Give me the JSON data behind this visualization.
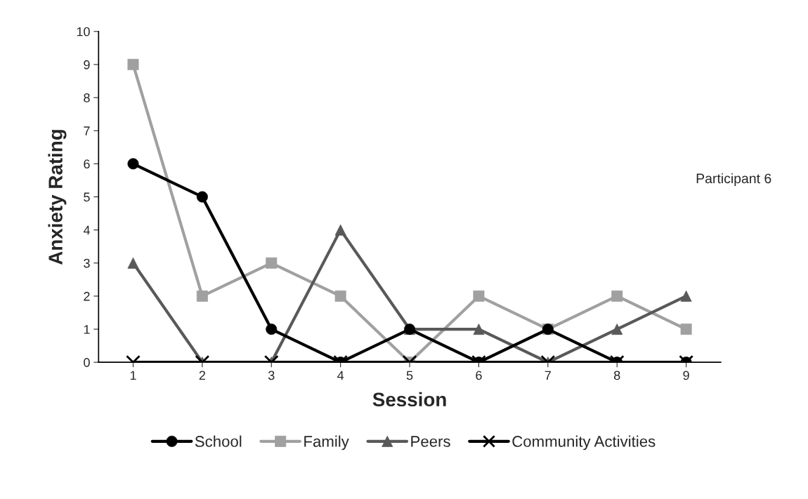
{
  "chart_data": {
    "type": "line",
    "xlabel": "Session",
    "ylabel": "Anxiety Rating",
    "categories": [
      "1",
      "2",
      "3",
      "4",
      "5",
      "6",
      "7",
      "8",
      "9"
    ],
    "series": [
      {
        "name": "School",
        "color": "#000000",
        "marker": "circle",
        "values": [
          6,
          5,
          1,
          0,
          1,
          0,
          1,
          0,
          0
        ]
      },
      {
        "name": "Family",
        "color": "#a0a0a0",
        "marker": "square",
        "values": [
          9,
          2,
          3,
          2,
          0,
          2,
          1,
          2,
          1
        ]
      },
      {
        "name": "Peers",
        "color": "#595959",
        "marker": "triangle",
        "values": [
          3,
          0,
          0,
          4,
          1,
          1,
          0,
          1,
          2
        ]
      },
      {
        "name": "Community Activities",
        "color": "#000000",
        "marker": "cross",
        "values": [
          0,
          0,
          0,
          0,
          0,
          0,
          0,
          0,
          0
        ]
      }
    ],
    "ylim": [
      0,
      10
    ],
    "yticks": [
      0,
      1,
      2,
      3,
      4,
      5,
      6,
      7,
      8,
      9,
      10
    ],
    "grid": false,
    "legend": "bottom",
    "line_style": "solid",
    "annotations": [
      "Participant 6"
    ]
  }
}
